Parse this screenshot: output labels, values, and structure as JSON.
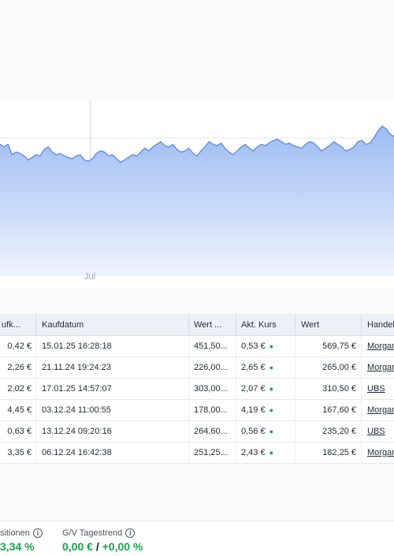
{
  "chart": {
    "x_tick": "Jul",
    "colors": {
      "line": "#5b8def",
      "fill_top": "#9dbcf2",
      "fill_bottom": "#eef3fd",
      "grid": "#e5e7eb"
    },
    "series_values": [
      60,
      58,
      60,
      52,
      54,
      53,
      51,
      48,
      50,
      52,
      51,
      56,
      58,
      54,
      52,
      53,
      51,
      50,
      49,
      51,
      52,
      48,
      47,
      49,
      53,
      55,
      54,
      51,
      52,
      49,
      46,
      48,
      50,
      52,
      51,
      54,
      57,
      55,
      58,
      60,
      62,
      59,
      58,
      60,
      56,
      54,
      55,
      57,
      53,
      51,
      55,
      58,
      62,
      60,
      59,
      61,
      57,
      54,
      52,
      55,
      58,
      60,
      57,
      55,
      58,
      60,
      59,
      61,
      63,
      64,
      62,
      60,
      61,
      59,
      58,
      57,
      60,
      62,
      61,
      58,
      55,
      57,
      59,
      62,
      60,
      58,
      55,
      56,
      58,
      62,
      63,
      60,
      61,
      65,
      70,
      74,
      72,
      68,
      66
    ]
  },
  "table": {
    "headers": [
      "ufk...",
      "Kaufdatum",
      "Wert ...",
      "Akt. Kurs",
      "Wert",
      "Handel"
    ],
    "rows": [
      {
        "kauf": "0,42 €",
        "datum": "15.01.25 16:28:18",
        "wert_kauf": "451,50...",
        "kurs": "0,53 €",
        "wert": "569,75 €",
        "handel": "Morgan"
      },
      {
        "kauf": "2,26 €",
        "datum": "21.11.24 19:24:23",
        "wert_kauf": "226,00...",
        "kurs": "2,65 €",
        "wert": "265,00 €",
        "handel": "Morgan"
      },
      {
        "kauf": "2,02 €",
        "datum": "17.01.25 14:57:07",
        "wert_kauf": "303,00...",
        "kurs": "2,07 €",
        "wert": "310,50 €",
        "handel": "UBS"
      },
      {
        "kauf": "4,45 €",
        "datum": "03.12.24 11:00:55",
        "wert_kauf": "178,00...",
        "kurs": "4,19 €",
        "wert": "167,60 €",
        "handel": "Morgan"
      },
      {
        "kauf": "0,63 €",
        "datum": "13.12.24 09:20:16",
        "wert_kauf": "264,60...",
        "kurs": "0,56 €",
        "wert": "235,20 €",
        "handel": "UBS"
      },
      {
        "kauf": "3,35 €",
        "datum": "06.12.24 16:42:38",
        "wert_kauf": "251,25...",
        "kurs": "2,43 €",
        "wert": "182,25 €",
        "handel": "Morgan"
      }
    ],
    "live_dot": "●"
  },
  "footer": {
    "positions_label": "sitionen",
    "positions_value": "3,34 %",
    "trend_label": "G/V Tagestrend",
    "trend_value_eur": "0,00 €",
    "trend_sep": "/",
    "trend_value_pct": "+0,00 %",
    "info_glyph": "i"
  }
}
